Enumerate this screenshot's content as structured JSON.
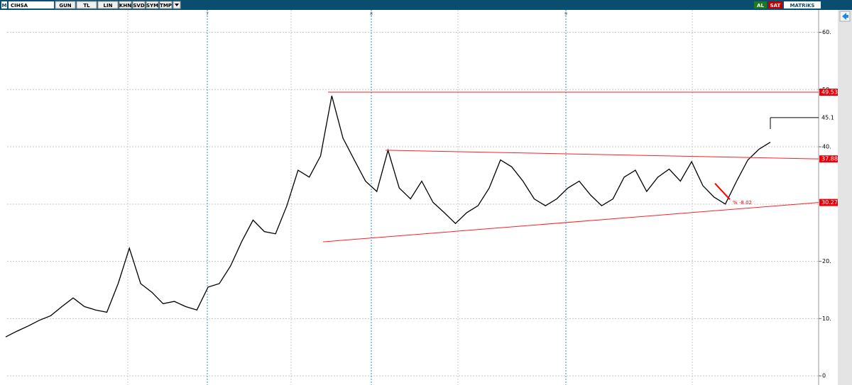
{
  "toolbar": {
    "logo": "M",
    "symbol": "CIHSA",
    "buttons": [
      "GUN",
      "TL",
      "LIN",
      "KHN",
      "SVD",
      "SYM",
      "TMP"
    ],
    "buy": "AL",
    "sell": "SAT",
    "brand": "MATRiKS"
  },
  "chart_data": {
    "type": "line",
    "color": "#000000",
    "values": [
      6.8,
      7.8,
      8.7,
      9.7,
      10.5,
      12.1,
      13.6,
      12.1,
      11.5,
      11.1,
      16.1,
      22.3,
      16.1,
      14.6,
      12.6,
      13.0,
      12.1,
      11.5,
      15.5,
      16.1,
      19.2,
      23.5,
      27.2,
      25.2,
      24.8,
      29.7,
      35.9,
      34.7,
      38.4,
      48.9,
      41.5,
      37.7,
      34.0,
      32.2,
      39.4,
      32.8,
      30.9,
      34.0,
      30.3,
      28.5,
      26.6,
      28.5,
      29.7,
      32.8,
      37.7,
      36.5,
      34.0,
      30.9,
      29.7,
      30.9,
      32.8,
      34.0,
      31.6,
      29.7,
      30.9,
      34.7,
      35.9,
      32.2,
      34.7,
      36.1,
      34.0,
      37.4,
      33.2,
      31.2,
      30.0,
      34.0,
      37.7,
      39.6,
      40.8
    ],
    "ylim": [
      -1.6,
      63.9
    ],
    "yticks": [
      0,
      {
        "value": 10,
        "label": "10."
      },
      {
        "value": 20,
        "label": "20."
      },
      {
        "value": 40,
        "label": "40."
      },
      {
        "value": 50,
        "label": "50."
      },
      {
        "value": 60,
        "label": "60."
      }
    ],
    "grid": true,
    "period_labels": [
      "7",
      "8",
      "9"
    ],
    "price_tags": [
      49.53,
      45.1,
      37.88,
      30.27
    ],
    "price_tag_colors": [
      "#e8000b",
      "none",
      "#e8000b",
      "#e8000b"
    ],
    "lines": [
      {
        "values": [
          49.53,
          49.53
        ],
        "color": "#ff2020"
      },
      {
        "values": [
          39.4,
          37.88
        ],
        "color": "#ff2020"
      },
      {
        "values": [
          23.4,
          30.27
        ],
        "color": "#ff2020"
      },
      {
        "values": [
          33.6,
          30.8
        ],
        "color": "#ff0000"
      },
      {
        "values": [
          45.1,
          45.1
        ],
        "color": "#000000"
      },
      {
        "values": [
          43.1,
          45.1
        ],
        "color": "#000000"
      }
    ],
    "annotation": "% -8.02"
  }
}
